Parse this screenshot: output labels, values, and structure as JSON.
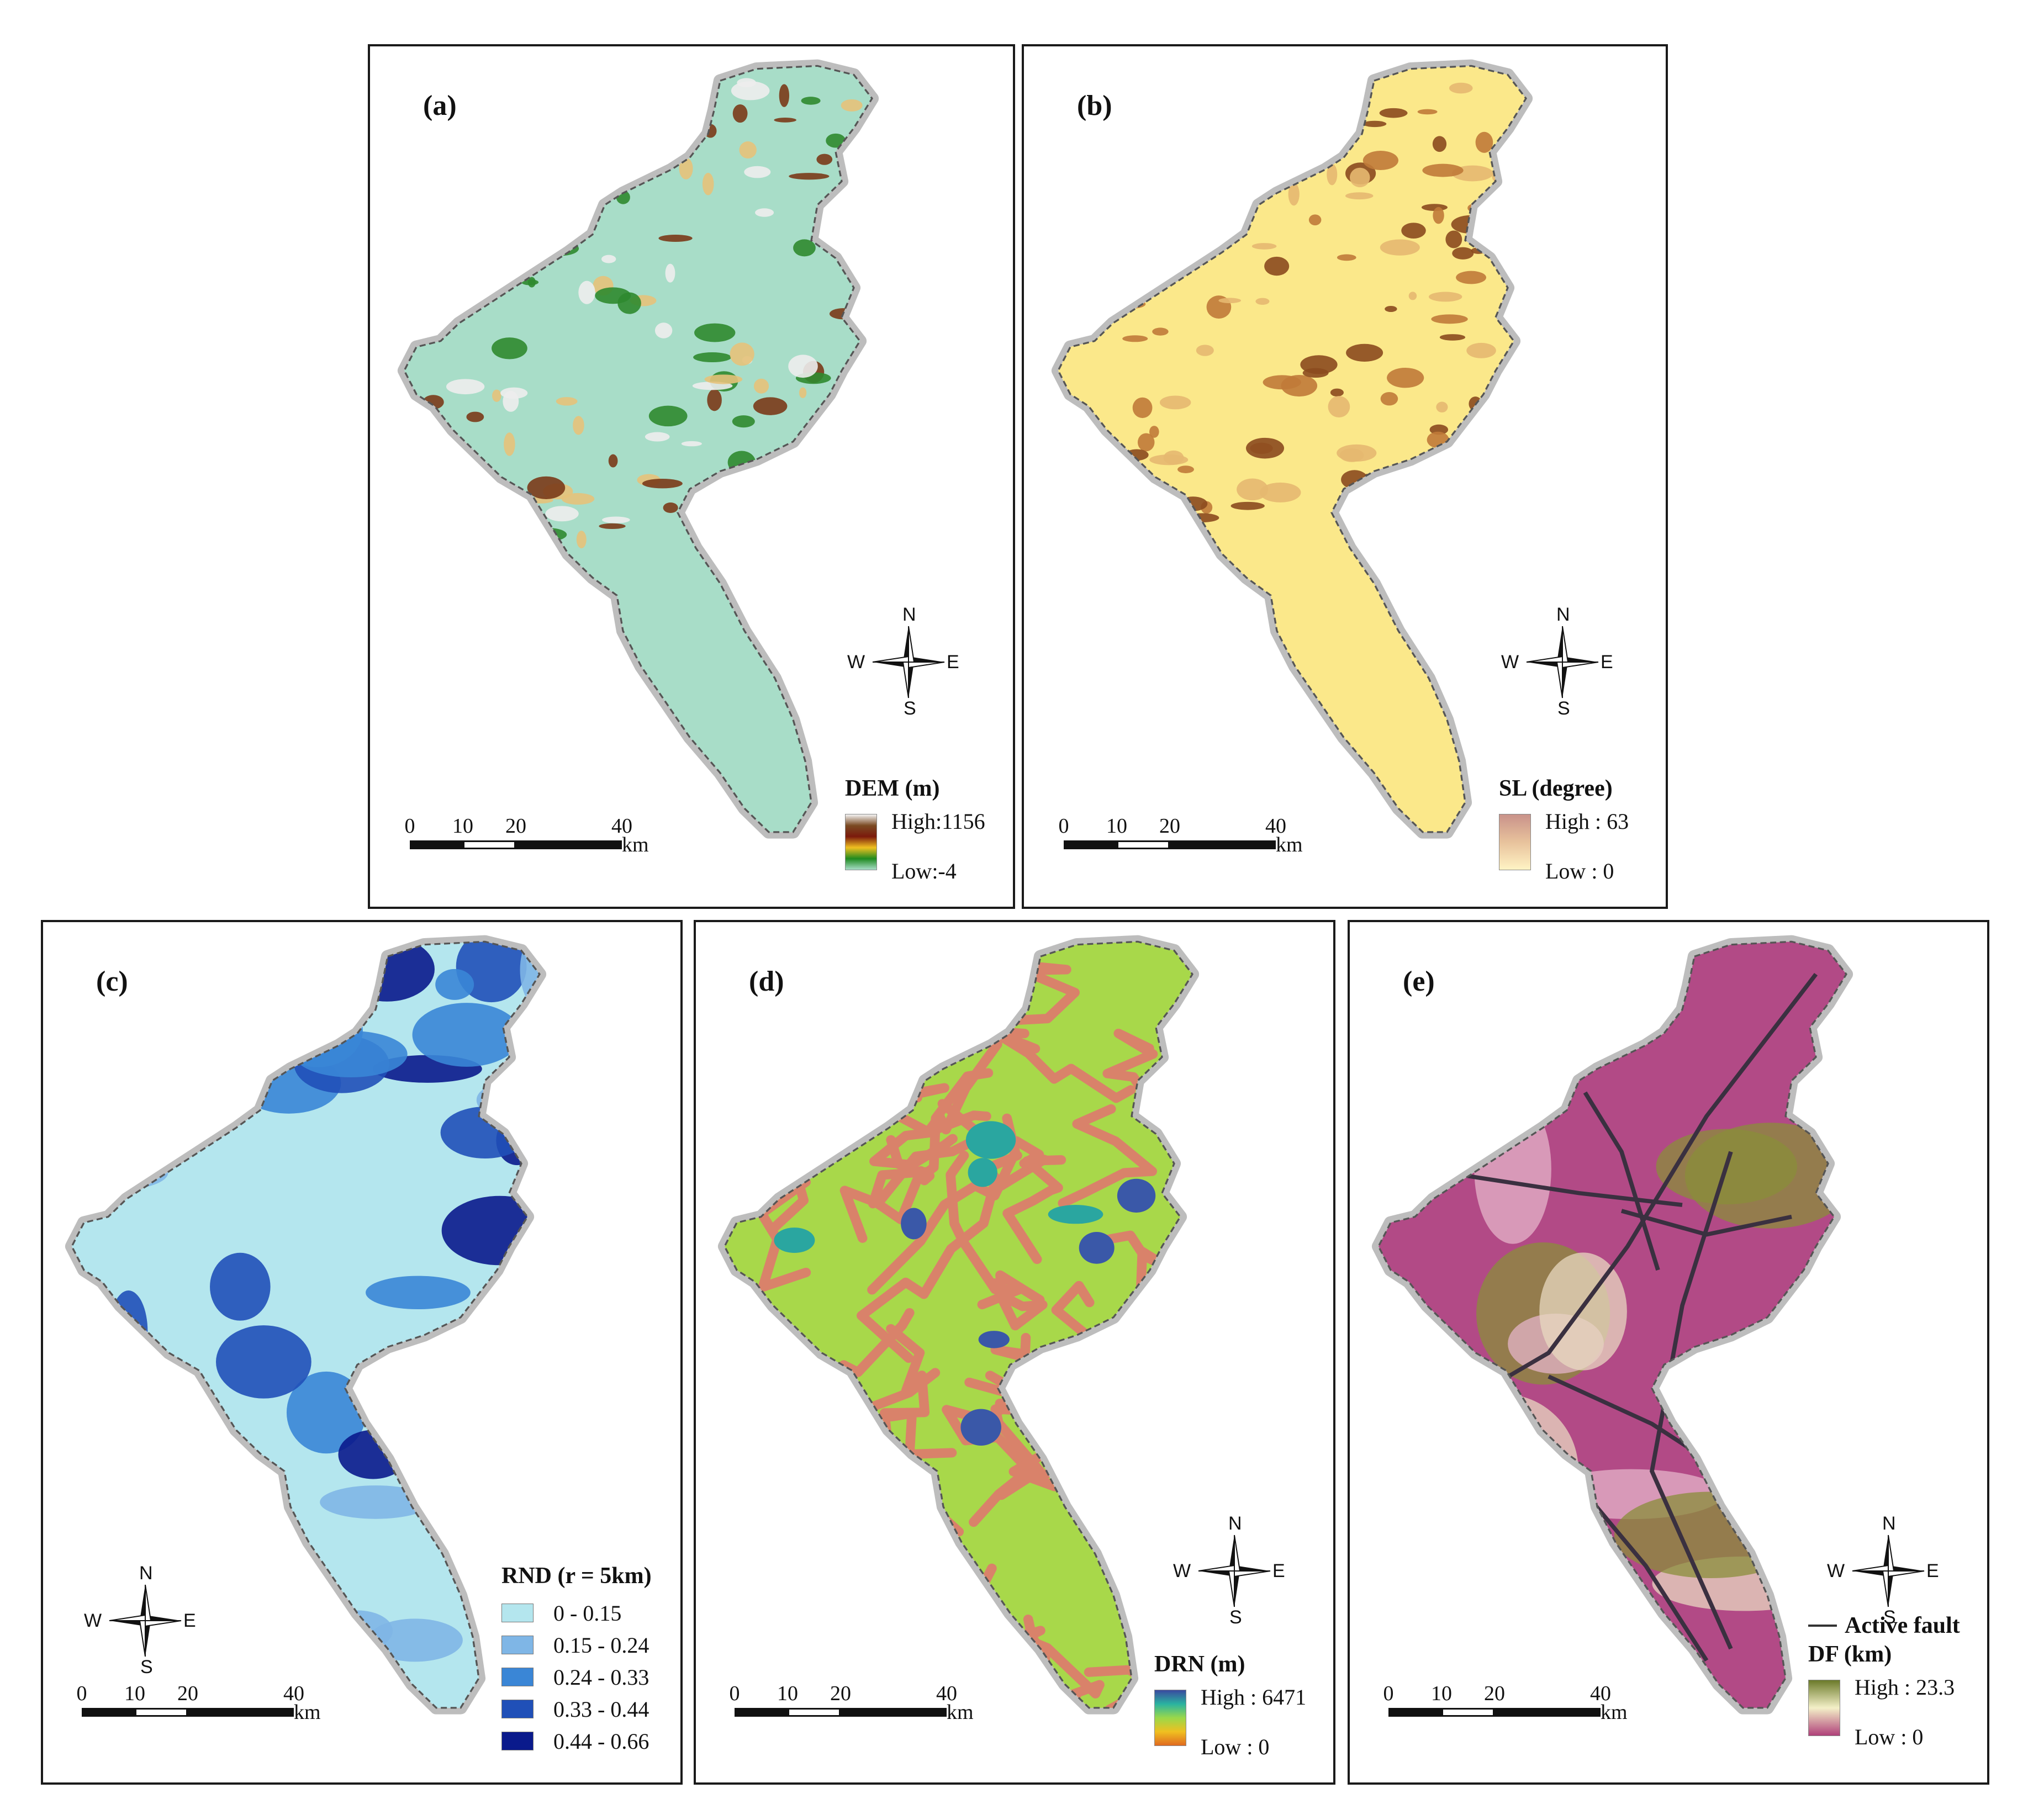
{
  "panels": [
    {
      "id": "a",
      "label": "(a)",
      "legend": {
        "title": "DEM (m)",
        "high": "High:1156",
        "low": "Low:-4",
        "colors": [
          "#f4f4f4",
          "#7a4a22",
          "#7b1a0c",
          "#f0c020",
          "#1f8a1f",
          "#a8ddc8"
        ]
      },
      "fill_base": "#a8ddc8",
      "fill_patches": [
        "#7a3a18",
        "#2f8a2f",
        "#e6c27a",
        "#ededed"
      ]
    },
    {
      "id": "b",
      "label": "(b)",
      "legend": {
        "title": "SL (degree)",
        "high": "High : 63",
        "low": "Low : 0",
        "colors": [
          "#c9928a",
          "#e8c29c",
          "#fff3c4"
        ]
      },
      "fill_base": "#fbe88a",
      "fill_patches": [
        "#8b4a1e",
        "#c07a38",
        "#e6b870"
      ]
    },
    {
      "id": "c",
      "label": "(c)",
      "legend": {
        "title": "RND (r = 5km)",
        "classes": [
          {
            "label": "0 - 0.15",
            "color": "#b4e6ee"
          },
          {
            "label": "0.15 - 0.24",
            "color": "#7fb6e6"
          },
          {
            "label": "0.24 - 0.33",
            "color": "#3a86d6"
          },
          {
            "label": "0.33 - 0.44",
            "color": "#2050b8"
          },
          {
            "label": "0.44 - 0.66",
            "color": "#0a1a8c"
          }
        ]
      },
      "fill_base": "#b4e6ee",
      "fill_patches": [
        "#7fb6e6",
        "#3a86d6",
        "#2050b8",
        "#0a1a8c"
      ]
    },
    {
      "id": "d",
      "label": "(d)",
      "legend": {
        "title": "DRN (m)",
        "high": "High : 6471",
        "low": "Low : 0",
        "colors": [
          "#3a4aa0",
          "#2ab3a0",
          "#9ad84a",
          "#f0c020",
          "#e06a20"
        ]
      },
      "fill_base": "#a8d84a",
      "fill_patches": [
        "#d9826a",
        "#3a58a8",
        "#2aa6a0"
      ]
    },
    {
      "id": "e",
      "label": "(e)",
      "legend": {
        "fault_label": "Active fault",
        "title": "DF (km)",
        "high": "High : 23.3",
        "low": "Low : 0",
        "colors": [
          "#6b7a2a",
          "#f4f0c8",
          "#b0407a"
        ]
      },
      "fill_base": "#b24a86",
      "fill_patches": [
        "#e8d8c0",
        "#8a8e3a",
        "#e4b4c8"
      ]
    }
  ],
  "compass": {
    "n": "N",
    "s": "S",
    "e": "E",
    "w": "W"
  },
  "scale": {
    "ticks": [
      "0",
      "10",
      "20",
      "40"
    ],
    "unit": "km"
  }
}
